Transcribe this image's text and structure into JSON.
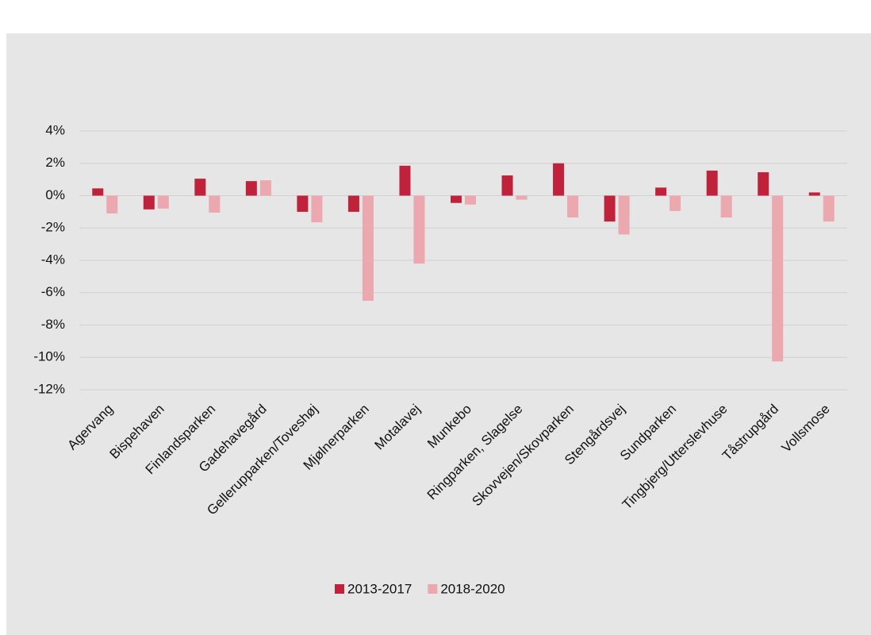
{
  "chart_data": {
    "type": "bar",
    "categories": [
      "Agervang",
      "Bispehaven",
      "Finlandsparken",
      "Gadehavegård",
      "Gellerupparken/Toveshøj",
      "Mjølnerparken",
      "Motalavej",
      "Munkebo",
      "Ringparken, Slagelse",
      "Skovvejen/Skovparken",
      "Stengårdsvej",
      "Sundparken",
      "Tingbjerg/Utterslevhuse",
      "Tåstrupgård",
      "Vollsmose"
    ],
    "series": [
      {
        "name": "2013-2017",
        "color": "#c0223b",
        "values": [
          0.45,
          -0.85,
          1.05,
          0.9,
          -1.0,
          -1.0,
          1.85,
          -0.45,
          1.25,
          2.0,
          -1.6,
          0.5,
          1.55,
          1.45,
          0.2
        ]
      },
      {
        "name": "2018-2020",
        "color": "#eba8ae",
        "values": [
          -1.1,
          -0.8,
          -1.05,
          0.95,
          -1.65,
          -6.5,
          -4.2,
          -0.55,
          -0.25,
          -1.35,
          -2.4,
          -0.95,
          -1.35,
          -10.25,
          -1.6
        ]
      }
    ],
    "ylim": [
      -12,
      4
    ],
    "yticks": [
      {
        "value": -12,
        "label": "-12%"
      },
      {
        "value": -10,
        "label": "-10%"
      },
      {
        "value": -8,
        "label": "-8%"
      },
      {
        "value": -6,
        "label": "-6%"
      },
      {
        "value": -4,
        "label": "-4%"
      },
      {
        "value": -2,
        "label": "-2%"
      },
      {
        "value": 0,
        "label": "0%"
      },
      {
        "value": 2,
        "label": "2%"
      },
      {
        "value": 4,
        "label": "4%"
      }
    ],
    "grid": true,
    "legend": "bottom"
  }
}
